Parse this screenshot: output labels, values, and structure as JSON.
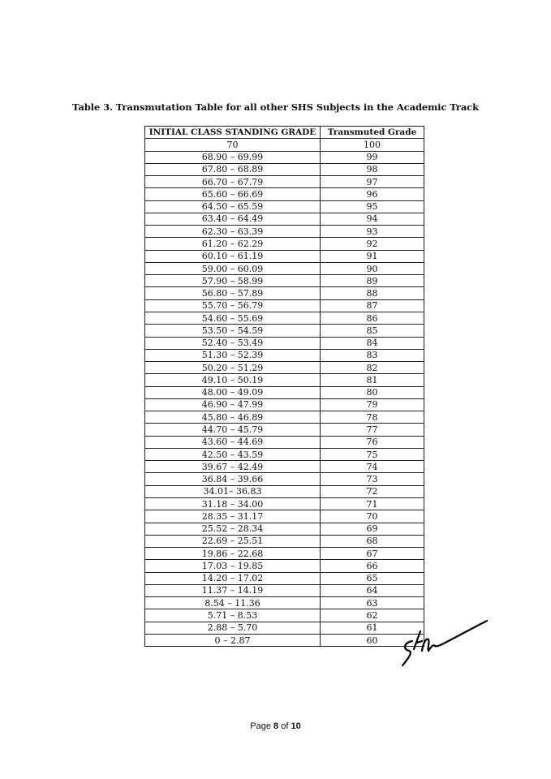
{
  "title": "Table 3. Transmutation Table for all other SHS Subjects in the Academic Track",
  "table": {
    "headers": [
      "INITIAL CLASS STANDING GRADE",
      "Transmuted Grade"
    ],
    "rows": [
      [
        "70",
        "100"
      ],
      [
        "68.90 – 69.99",
        "99"
      ],
      [
        "67.80 – 68.89",
        "98"
      ],
      [
        "66.70 – 67.79",
        "97"
      ],
      [
        "65.60 – 66.69",
        "96"
      ],
      [
        "64.50 – 65.59",
        "95"
      ],
      [
        "63.40 – 64.49",
        "94"
      ],
      [
        "62.30 – 63.39",
        "93"
      ],
      [
        "61.20 – 62.29",
        "92"
      ],
      [
        "60.10 – 61.19",
        "91"
      ],
      [
        "59.00 – 60.09",
        "90"
      ],
      [
        "57.90 – 58.99",
        "89"
      ],
      [
        "56.80 – 57.89",
        "88"
      ],
      [
        "55.70 – 56.79",
        "87"
      ],
      [
        "54.60 – 55.69",
        "86"
      ],
      [
        "53.50 – 54.59",
        "85"
      ],
      [
        "52.40 – 53.49",
        "84"
      ],
      [
        "51.30 – 52.39",
        "83"
      ],
      [
        "50.20 – 51.29",
        "82"
      ],
      [
        "49.10 – 50.19",
        "81"
      ],
      [
        "48.00 – 49.09",
        "80"
      ],
      [
        "46.90 – 47.99",
        "79"
      ],
      [
        "45.80 – 46.89",
        "78"
      ],
      [
        "44.70 – 45.79",
        "77"
      ],
      [
        "43.60 – 44.69",
        "76"
      ],
      [
        "42.50 – 43.59",
        "75"
      ],
      [
        "39.67 – 42.49",
        "74"
      ],
      [
        "36.84 – 39.66",
        "73"
      ],
      [
        "34.01– 36.83",
        "72"
      ],
      [
        "31.18 – 34.00",
        "71"
      ],
      [
        "28.35 – 31.17",
        "70"
      ],
      [
        "25.52 – 28.34",
        "69"
      ],
      [
        "22.69 – 25.51",
        "68"
      ],
      [
        "19.86 – 22.68",
        "67"
      ],
      [
        "17.03 – 19.85",
        "66"
      ],
      [
        "14.20 – 17.02",
        "65"
      ],
      [
        "11.37 – 14.19",
        "64"
      ],
      [
        "8.54 – 11.36",
        "63"
      ],
      [
        "5.71 – 8.53",
        "62"
      ],
      [
        "2.88 – 5.70",
        "61"
      ],
      [
        "0 – 2.87",
        "60"
      ]
    ]
  },
  "footer": {
    "prefix": "Page ",
    "page": "8",
    "middle": " of ",
    "total": "10"
  }
}
